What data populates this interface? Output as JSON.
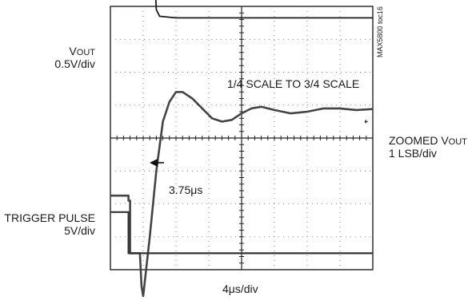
{
  "chart_data": {
    "type": "line",
    "doc_id": "MAX5800 toc16",
    "xlabel": "4μs/div",
    "divisions": {
      "x": 8,
      "y": 8
    },
    "channels": [
      {
        "name_main": "V",
        "name_sub": "OUT",
        "scale": "0.5V/div"
      },
      {
        "name_main": "ZOOMED V",
        "name_sub": "OUT",
        "scale": "1 LSB/div"
      },
      {
        "name_main": "TRIGGER PULSE",
        "name_sub": "",
        "scale": "5V/div"
      }
    ],
    "annotations": {
      "transition": "1/4 SCALE TO 3/4 SCALE",
      "settling_time": "3.75μs"
    },
    "traces_div": {
      "vout": [
        [
          0,
          -8
        ],
        [
          1.0,
          -8
        ],
        [
          1.1,
          -6
        ],
        [
          1.25,
          -3
        ],
        [
          1.4,
          0.1
        ],
        [
          1.5,
          0.3
        ],
        [
          2,
          0.35
        ],
        [
          8,
          0.35
        ]
      ],
      "zoomed": [
        [
          0,
          5.75
        ],
        [
          0.55,
          5.75
        ],
        [
          0.55,
          5.9
        ],
        [
          0.6,
          5.9
        ],
        [
          0.6,
          7.5
        ],
        [
          0.9,
          7.5
        ],
        [
          0.95,
          8.5
        ],
        [
          1.0,
          8.8
        ],
        [
          1.2,
          7.0
        ],
        [
          1.4,
          5.0
        ],
        [
          1.6,
          3.5
        ],
        [
          1.8,
          2.9
        ],
        [
          2.0,
          2.6
        ],
        [
          2.2,
          2.6
        ],
        [
          2.5,
          2.8
        ],
        [
          2.8,
          3.1
        ],
        [
          3.1,
          3.4
        ],
        [
          3.4,
          3.5
        ],
        [
          3.7,
          3.45
        ],
        [
          4.0,
          3.25
        ],
        [
          4.3,
          3.1
        ],
        [
          4.6,
          3.05
        ],
        [
          5.0,
          3.15
        ],
        [
          5.5,
          3.25
        ],
        [
          6.0,
          3.2
        ],
        [
          6.5,
          3.1
        ],
        [
          7.0,
          3.1
        ],
        [
          7.5,
          3.15
        ],
        [
          8,
          3.12
        ]
      ],
      "trigger": [
        [
          0,
          6.25
        ],
        [
          0.55,
          6.25
        ],
        [
          0.55,
          7.5
        ],
        [
          8,
          7.5
        ]
      ]
    },
    "arrow_target_div": [
      1.0,
      4.75
    ]
  }
}
